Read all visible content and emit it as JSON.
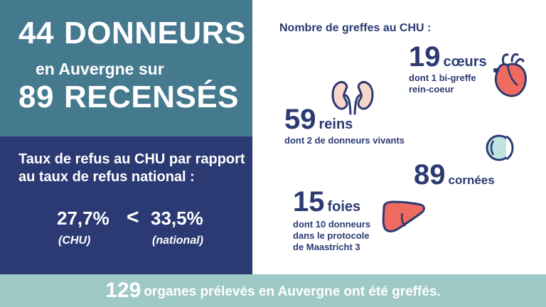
{
  "donors": {
    "count": "44",
    "word": "DONNEURS",
    "middle": "en Auvergne sur",
    "census_count": "89",
    "census_word": "RECENSÉS"
  },
  "refusal": {
    "title": "Taux de refus au CHU par rapport au taux de refus national :",
    "chu_value": "27,7%",
    "chu_label": "(CHU)",
    "comparator": "<",
    "national_value": "33,5%",
    "national_label": "(national)"
  },
  "grafts": {
    "title": "Nombre de greffes au CHU :",
    "hearts": {
      "count": "19",
      "label": "cœurs",
      "detail": "dont 1 bi-greffe rein-coeur",
      "icon": "heart-icon"
    },
    "kidneys": {
      "count": "59",
      "label": "reins",
      "detail": "dont 2 de donneurs vivants",
      "icon": "kidneys-icon"
    },
    "corneas": {
      "count": "89",
      "label": "cornées",
      "icon": "eye-icon"
    },
    "livers": {
      "count": "15",
      "label": "foies",
      "detail": "dont 10 donneurs dans le protocole de Maastricht 3",
      "icon": "liver-icon"
    }
  },
  "footer": {
    "count": "129",
    "text": "organes prélevés en Auvergne ont été greffés."
  },
  "colors": {
    "teal": "#45798e",
    "navy": "#2b3a73",
    "footer": "#9ec9c6",
    "organ_red": "#ef6b5f"
  }
}
